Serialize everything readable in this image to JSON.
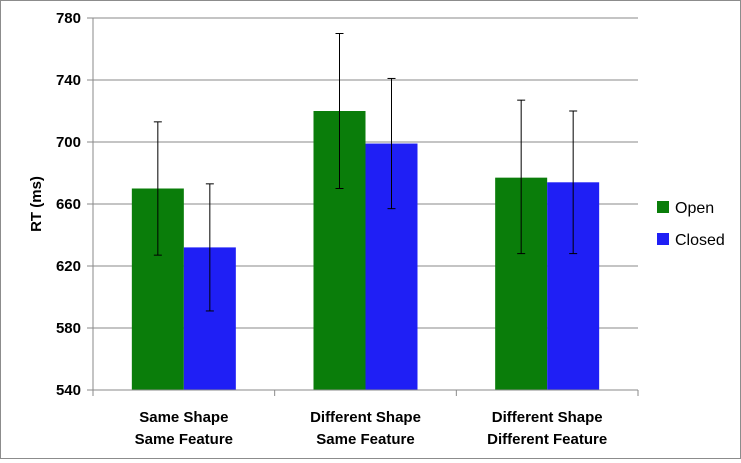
{
  "chart_data": {
    "type": "bar",
    "title": "",
    "xlabel": "",
    "ylabel": "RT (ms)",
    "ylim": [
      540,
      780
    ],
    "yticks": [
      540,
      580,
      620,
      660,
      700,
      740,
      780
    ],
    "grid": true,
    "legend_position": "right",
    "categories": [
      [
        "Same Shape",
        "Same Feature"
      ],
      [
        "Different Shape",
        "Same Feature"
      ],
      [
        "Different Shape",
        "Different Feature"
      ]
    ],
    "series": [
      {
        "name": "Open",
        "color": "#0a7d0a",
        "values": [
          670,
          720,
          677
        ],
        "error_low": [
          627,
          670,
          628
        ],
        "error_high": [
          713,
          770,
          727
        ]
      },
      {
        "name": "Closed",
        "color": "#1f1ff5",
        "values": [
          632,
          699,
          674
        ],
        "error_low": [
          591,
          657,
          628
        ],
        "error_high": [
          673,
          741,
          720
        ]
      }
    ]
  }
}
